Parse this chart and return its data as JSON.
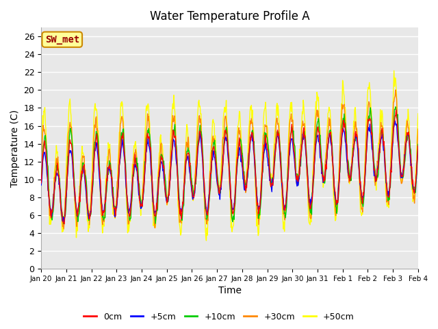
{
  "title": "Water Temperature Profile A",
  "xlabel": "Time",
  "ylabel": "Temperature (C)",
  "ylim": [
    0,
    27
  ],
  "yticks": [
    0,
    2,
    4,
    6,
    8,
    10,
    12,
    14,
    16,
    18,
    20,
    22,
    24,
    26
  ],
  "bg_color": "#e8e8e8",
  "plot_bg_color": "#e8e8e8",
  "line_colors": {
    "0cm": "#ff0000",
    "+5cm": "#0000ff",
    "+10cm": "#00cc00",
    "+30cm": "#ff8800",
    "+50cm": "#ffff00"
  },
  "legend_labels": [
    "0cm",
    "+5cm",
    "+10cm",
    "+30cm",
    "+50cm"
  ],
  "legend_colors": [
    "#ff0000",
    "#0000ff",
    "#00cc00",
    "#ff8800",
    "#ffff00"
  ],
  "annotation_text": "SW_met",
  "annotation_bg": "#ffff99",
  "annotation_border": "#cc8800",
  "annotation_text_color": "#990000",
  "x_tick_labels": [
    "Jan 20",
    "Jan 21",
    "Jan 22",
    "Jan 23",
    "Jan 24",
    "Jan 25",
    "Jan 26",
    "Jan 27",
    "Jan 28",
    "Jan 29",
    "Jan 30",
    "Jan 31",
    "Feb 1",
    "Feb 2",
    "Feb 3",
    "Feb 4"
  ],
  "n_days": 15,
  "points_per_day": 48
}
